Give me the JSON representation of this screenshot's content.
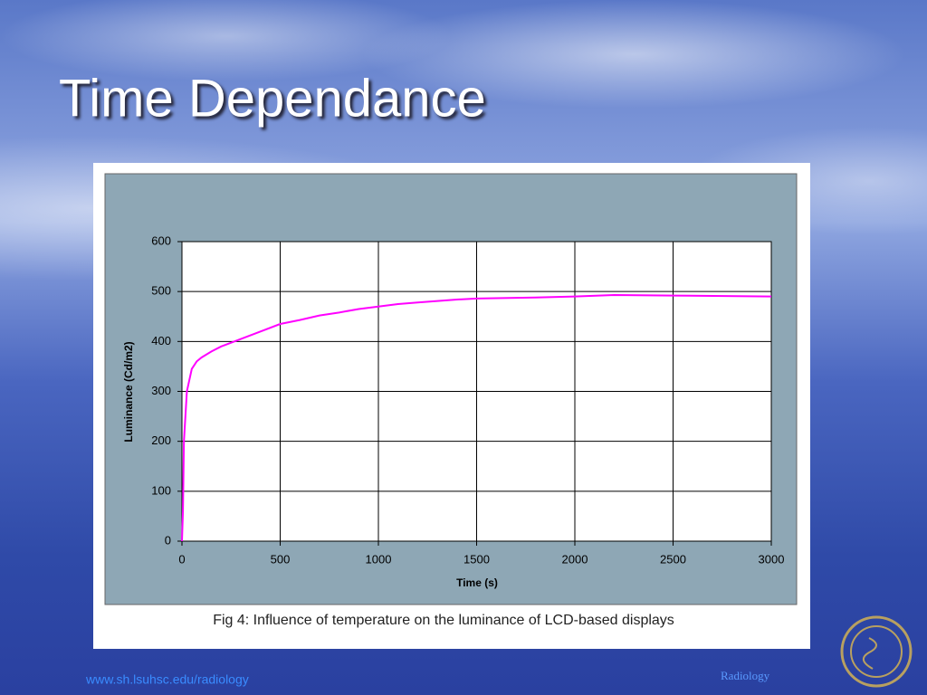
{
  "slide": {
    "title": "Time Dependance",
    "caption": "Fig 4: Influence of temperature on the luminance of LCD-based displays",
    "footer_url": "www.sh.lsuhsc.edu/radiology",
    "footer_dept": "Radiology"
  },
  "chart_data": {
    "type": "line",
    "x_label": "Time (s)",
    "y_label": "Luminance (Cd/m2)",
    "x": [
      0,
      5,
      10,
      25,
      50,
      75,
      100,
      150,
      200,
      300,
      400,
      500,
      600,
      700,
      800,
      900,
      1000,
      1100,
      1200,
      1400,
      1500,
      1800,
      2000,
      2200,
      2500,
      3000
    ],
    "series": [
      {
        "color": "#ff00ff",
        "values": [
          0,
          60,
          200,
          300,
          345,
          360,
          368,
          380,
          390,
          405,
          420,
          435,
          443,
          452,
          458,
          465,
          470,
          475,
          478,
          484,
          486,
          488,
          490,
          493,
          492,
          490
        ]
      }
    ],
    "xlim": [
      0,
      3000
    ],
    "xticks": [
      0,
      500,
      1000,
      1500,
      2000,
      2500,
      3000
    ],
    "ylim": [
      0,
      600
    ],
    "yticks": [
      0,
      100,
      200,
      300,
      400,
      500,
      600
    ],
    "grid": true
  }
}
